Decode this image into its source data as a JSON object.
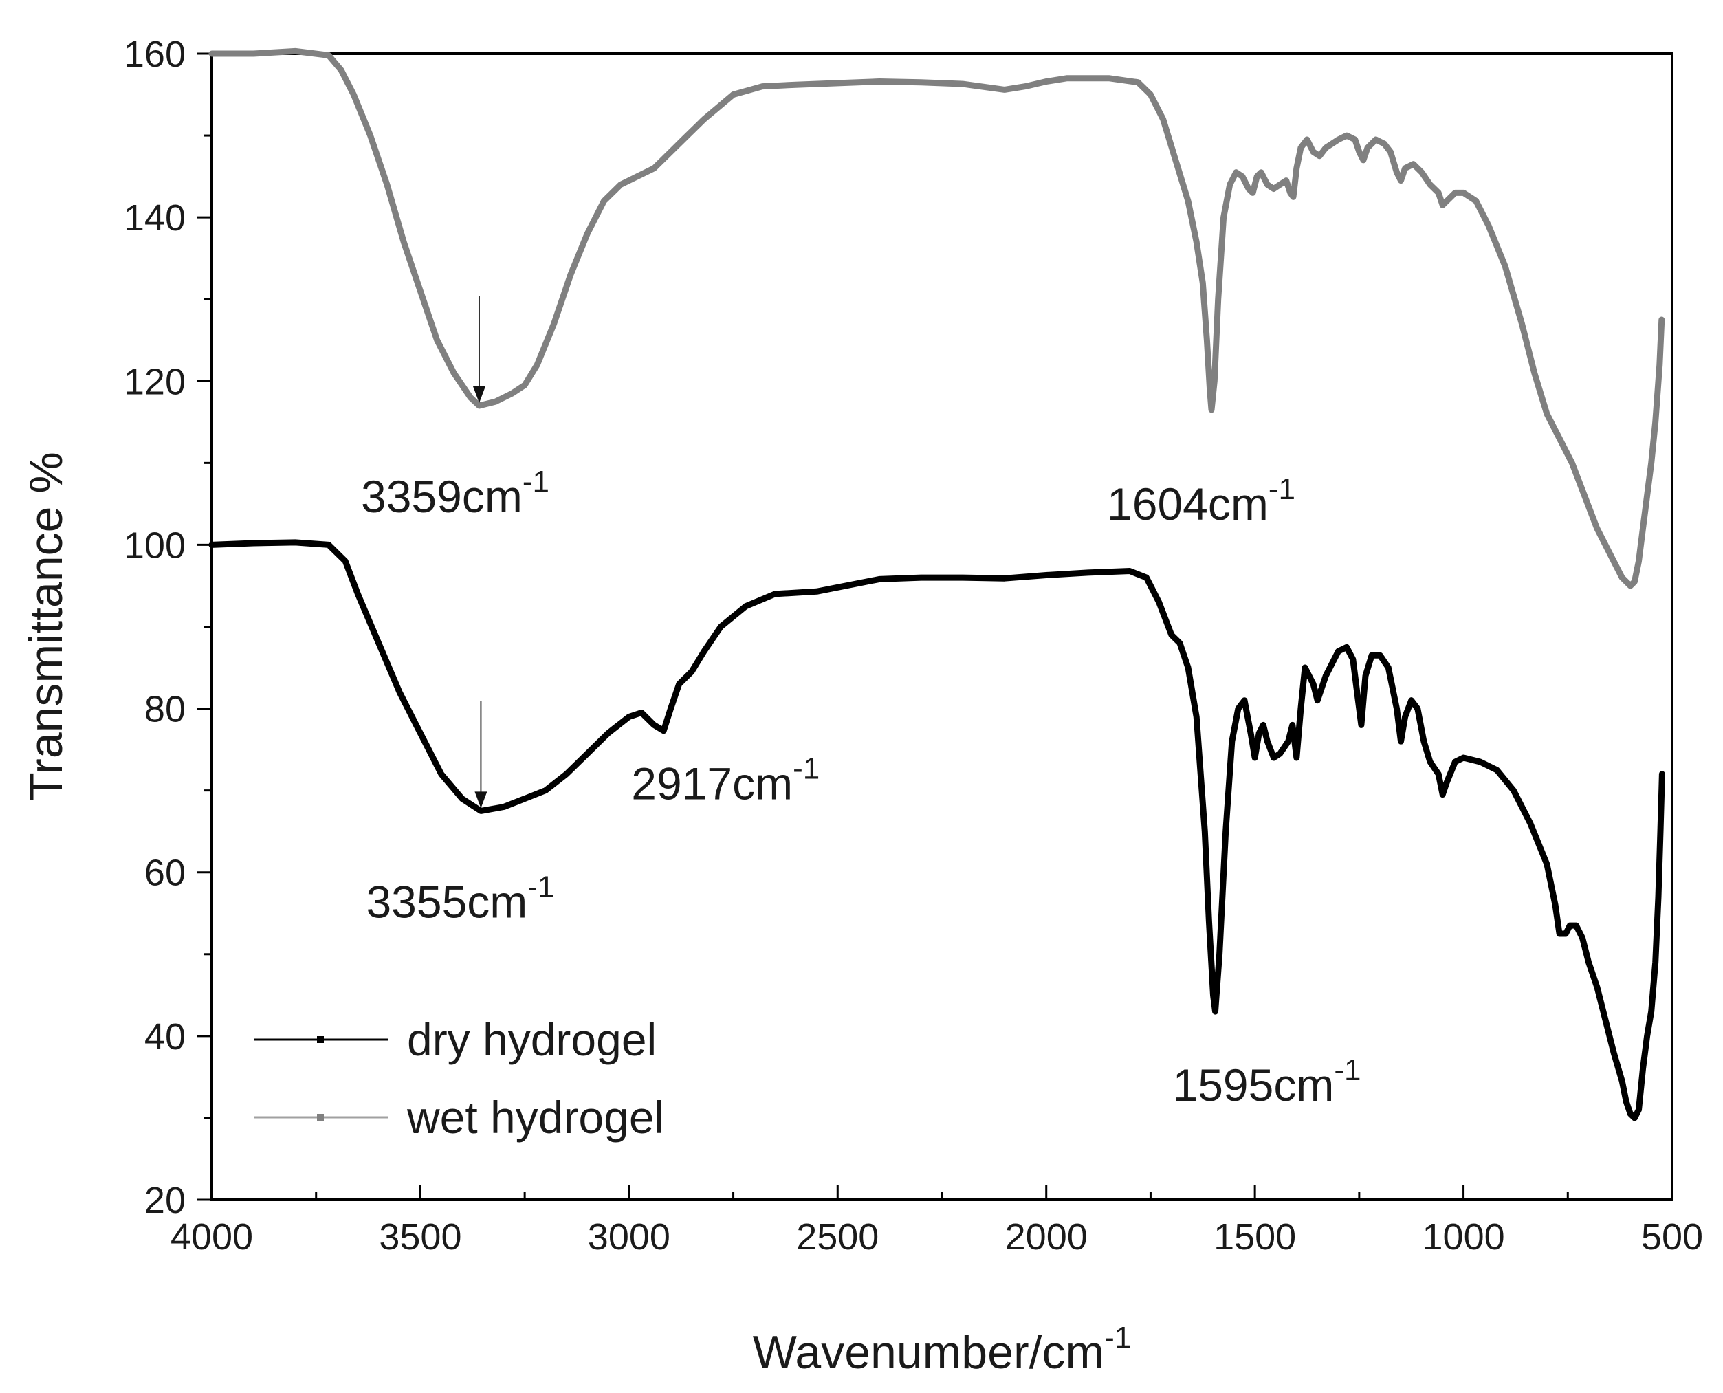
{
  "chart_data": {
    "type": "line",
    "xlabel": "Wavenumber/cm",
    "xlabel_sup": "-1",
    "ylabel": "Transmittance %",
    "xlim": [
      4000,
      500
    ],
    "ylim": [
      20,
      160
    ],
    "x_ticks": [
      4000,
      3500,
      3000,
      2500,
      2000,
      1500,
      1000,
      500
    ],
    "y_ticks": [
      20,
      40,
      60,
      80,
      100,
      120,
      140,
      160
    ],
    "grid": false,
    "legend_position": "bottom-left",
    "series": [
      {
        "name": "dry hydrogel",
        "color": "#000000",
        "points": [
          [
            4000,
            100
          ],
          [
            3900,
            100.2
          ],
          [
            3800,
            100.3
          ],
          [
            3720,
            100
          ],
          [
            3680,
            98
          ],
          [
            3650,
            94
          ],
          [
            3600,
            88
          ],
          [
            3550,
            82
          ],
          [
            3500,
            77
          ],
          [
            3450,
            72
          ],
          [
            3400,
            69
          ],
          [
            3355,
            67.5
          ],
          [
            3300,
            68
          ],
          [
            3250,
            69
          ],
          [
            3200,
            70
          ],
          [
            3150,
            72
          ],
          [
            3100,
            74.5
          ],
          [
            3050,
            77
          ],
          [
            3000,
            79
          ],
          [
            2970,
            79.5
          ],
          [
            2940,
            78
          ],
          [
            2917,
            77.3
          ],
          [
            2900,
            80
          ],
          [
            2880,
            83
          ],
          [
            2850,
            84.5
          ],
          [
            2820,
            87
          ],
          [
            2780,
            90
          ],
          [
            2720,
            92.5
          ],
          [
            2650,
            94
          ],
          [
            2550,
            94.3
          ],
          [
            2500,
            94.8
          ],
          [
            2400,
            95.8
          ],
          [
            2300,
            96
          ],
          [
            2200,
            96
          ],
          [
            2100,
            95.9
          ],
          [
            2000,
            96.3
          ],
          [
            1900,
            96.6
          ],
          [
            1800,
            96.8
          ],
          [
            1760,
            96
          ],
          [
            1730,
            93
          ],
          [
            1700,
            89
          ],
          [
            1680,
            88
          ],
          [
            1660,
            85
          ],
          [
            1640,
            79
          ],
          [
            1620,
            65
          ],
          [
            1610,
            54
          ],
          [
            1600,
            45
          ],
          [
            1595,
            43
          ],
          [
            1585,
            50
          ],
          [
            1570,
            65
          ],
          [
            1555,
            76
          ],
          [
            1540,
            80
          ],
          [
            1525,
            81
          ],
          [
            1510,
            77
          ],
          [
            1500,
            74
          ],
          [
            1490,
            77
          ],
          [
            1480,
            78
          ],
          [
            1470,
            76
          ],
          [
            1455,
            74
          ],
          [
            1440,
            74.5
          ],
          [
            1420,
            76
          ],
          [
            1410,
            78
          ],
          [
            1400,
            74
          ],
          [
            1390,
            80
          ],
          [
            1380,
            85
          ],
          [
            1360,
            83
          ],
          [
            1350,
            81
          ],
          [
            1330,
            84
          ],
          [
            1300,
            87
          ],
          [
            1280,
            87.5
          ],
          [
            1265,
            86
          ],
          [
            1255,
            82
          ],
          [
            1245,
            78
          ],
          [
            1235,
            84
          ],
          [
            1220,
            86.5
          ],
          [
            1200,
            86.5
          ],
          [
            1180,
            85
          ],
          [
            1160,
            80
          ],
          [
            1150,
            76
          ],
          [
            1140,
            79
          ],
          [
            1125,
            81
          ],
          [
            1110,
            80
          ],
          [
            1095,
            76
          ],
          [
            1080,
            73.5
          ],
          [
            1060,
            72
          ],
          [
            1050,
            69.5
          ],
          [
            1040,
            71
          ],
          [
            1020,
            73.5
          ],
          [
            1000,
            74
          ],
          [
            960,
            73.5
          ],
          [
            920,
            72.5
          ],
          [
            880,
            70
          ],
          [
            840,
            66
          ],
          [
            800,
            61
          ],
          [
            780,
            56
          ],
          [
            770,
            52.5
          ],
          [
            755,
            52.5
          ],
          [
            745,
            53.5
          ],
          [
            730,
            53.5
          ],
          [
            715,
            52
          ],
          [
            700,
            49
          ],
          [
            680,
            46
          ],
          [
            660,
            42
          ],
          [
            640,
            38
          ],
          [
            620,
            34.5
          ],
          [
            610,
            32
          ],
          [
            600,
            30.5
          ],
          [
            590,
            30
          ],
          [
            580,
            31
          ],
          [
            570,
            36
          ],
          [
            560,
            40
          ],
          [
            550,
            43
          ],
          [
            540,
            49
          ],
          [
            533,
            57
          ],
          [
            528,
            65
          ],
          [
            524,
            72
          ]
        ]
      },
      {
        "name": "wet hydrogel",
        "color": "#808080",
        "points": [
          [
            4000,
            160
          ],
          [
            3900,
            160
          ],
          [
            3800,
            160.3
          ],
          [
            3720,
            159.8
          ],
          [
            3690,
            158
          ],
          [
            3660,
            155
          ],
          [
            3620,
            150
          ],
          [
            3580,
            144
          ],
          [
            3540,
            137
          ],
          [
            3500,
            131
          ],
          [
            3460,
            125
          ],
          [
            3420,
            121
          ],
          [
            3380,
            118
          ],
          [
            3359,
            117
          ],
          [
            3320,
            117.5
          ],
          [
            3280,
            118.5
          ],
          [
            3250,
            119.5
          ],
          [
            3220,
            122
          ],
          [
            3180,
            127
          ],
          [
            3140,
            133
          ],
          [
            3100,
            138
          ],
          [
            3060,
            142
          ],
          [
            3020,
            144
          ],
          [
            2980,
            145
          ],
          [
            2940,
            146
          ],
          [
            2900,
            148
          ],
          [
            2870,
            149.5
          ],
          [
            2820,
            152
          ],
          [
            2750,
            155
          ],
          [
            2680,
            156
          ],
          [
            2600,
            156.2
          ],
          [
            2500,
            156.4
          ],
          [
            2400,
            156.6
          ],
          [
            2300,
            156.5
          ],
          [
            2200,
            156.3
          ],
          [
            2100,
            155.6
          ],
          [
            2050,
            156
          ],
          [
            2000,
            156.6
          ],
          [
            1950,
            157
          ],
          [
            1850,
            157
          ],
          [
            1780,
            156.5
          ],
          [
            1750,
            155
          ],
          [
            1720,
            152
          ],
          [
            1690,
            147
          ],
          [
            1660,
            142
          ],
          [
            1640,
            137
          ],
          [
            1625,
            132
          ],
          [
            1615,
            125
          ],
          [
            1608,
            119
          ],
          [
            1604,
            116.5
          ],
          [
            1597,
            120
          ],
          [
            1588,
            130
          ],
          [
            1575,
            140
          ],
          [
            1560,
            144
          ],
          [
            1545,
            145.5
          ],
          [
            1530,
            145
          ],
          [
            1515,
            143.5
          ],
          [
            1505,
            143
          ],
          [
            1495,
            145
          ],
          [
            1485,
            145.5
          ],
          [
            1470,
            144
          ],
          [
            1455,
            143.5
          ],
          [
            1440,
            144
          ],
          [
            1425,
            144.5
          ],
          [
            1415,
            143
          ],
          [
            1408,
            142.5
          ],
          [
            1400,
            146
          ],
          [
            1390,
            148.5
          ],
          [
            1375,
            149.5
          ],
          [
            1360,
            148
          ],
          [
            1345,
            147.5
          ],
          [
            1330,
            148.5
          ],
          [
            1300,
            149.5
          ],
          [
            1280,
            150
          ],
          [
            1260,
            149.5
          ],
          [
            1250,
            148
          ],
          [
            1240,
            147
          ],
          [
            1230,
            148.5
          ],
          [
            1210,
            149.5
          ],
          [
            1190,
            149
          ],
          [
            1175,
            148
          ],
          [
            1160,
            145.5
          ],
          [
            1150,
            144.5
          ],
          [
            1140,
            146
          ],
          [
            1120,
            146.5
          ],
          [
            1100,
            145.5
          ],
          [
            1080,
            144
          ],
          [
            1060,
            143
          ],
          [
            1050,
            141.5
          ],
          [
            1040,
            142
          ],
          [
            1020,
            143
          ],
          [
            1000,
            143
          ],
          [
            970,
            142
          ],
          [
            940,
            139
          ],
          [
            900,
            134
          ],
          [
            860,
            127
          ],
          [
            830,
            121
          ],
          [
            800,
            116
          ],
          [
            770,
            113
          ],
          [
            740,
            110
          ],
          [
            710,
            106
          ],
          [
            680,
            102
          ],
          [
            650,
            99
          ],
          [
            620,
            96
          ],
          [
            600,
            95
          ],
          [
            590,
            95.5
          ],
          [
            580,
            98
          ],
          [
            570,
            102
          ],
          [
            560,
            106
          ],
          [
            550,
            110
          ],
          [
            540,
            115
          ],
          [
            530,
            122
          ],
          [
            525,
            127.5
          ]
        ]
      }
    ],
    "annotations": [
      {
        "label": "3359cm",
        "sup": "-1",
        "x": 3359,
        "y": 117,
        "arrow": true
      },
      {
        "label": "1604cm",
        "sup": "-1",
        "x": 1604,
        "y": 116.5,
        "arrow": false
      },
      {
        "label": "3355cm",
        "sup": "-1",
        "x": 3355,
        "y": 67.5,
        "arrow": true
      },
      {
        "label": "2917cm",
        "sup": "-1",
        "x": 2917,
        "y": 77.3,
        "arrow": false
      },
      {
        "label": "1595cm",
        "sup": "-1",
        "x": 1595,
        "y": 43,
        "arrow": false
      }
    ]
  }
}
